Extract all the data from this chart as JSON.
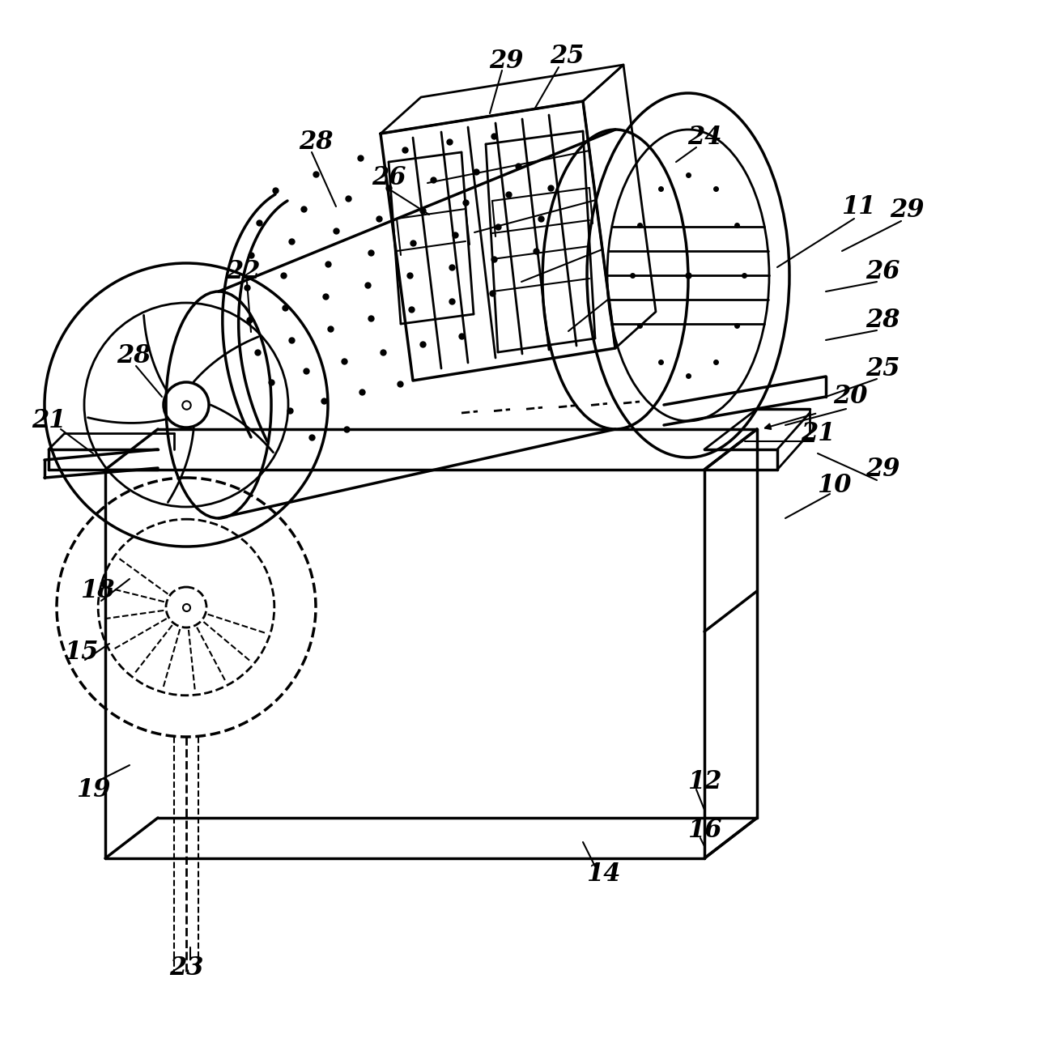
{
  "bg_color": "#ffffff",
  "line_color": "#000000",
  "lw_thin": 1.5,
  "lw_med": 2.0,
  "lw_thick": 2.5,
  "fig_width": 12.87,
  "fig_height": 12.98
}
